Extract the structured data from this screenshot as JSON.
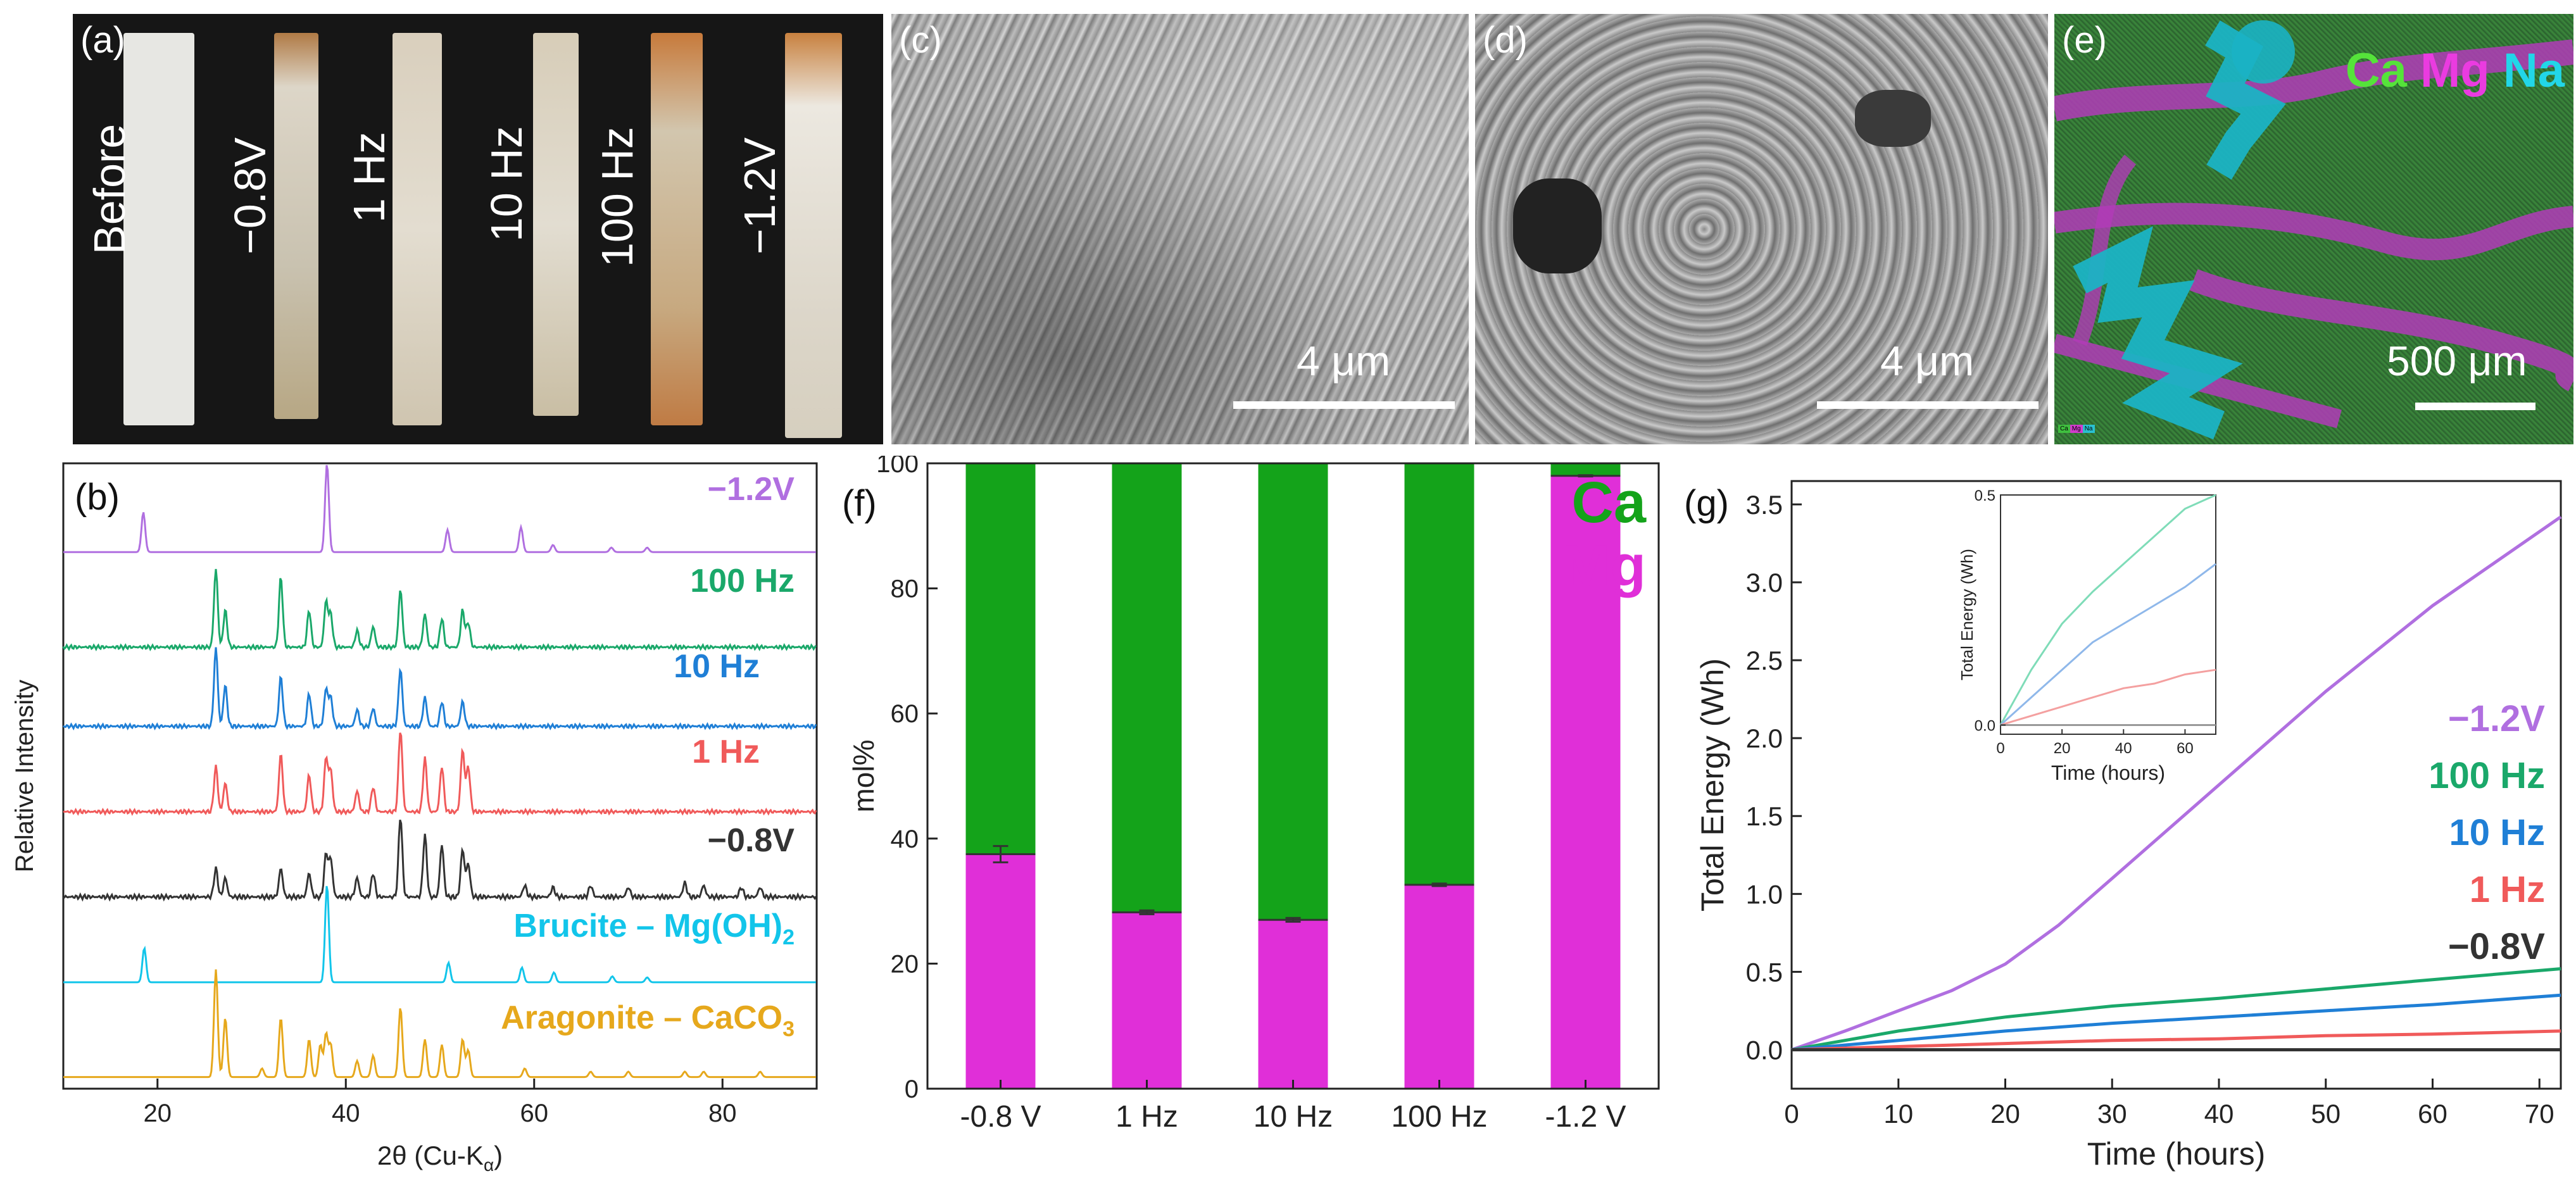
{
  "panel_a": {
    "label": "(a)",
    "strips": [
      "Before",
      "−0.8V",
      "1 Hz",
      "10 Hz",
      "100 Hz",
      "−1.2V"
    ]
  },
  "panel_c": {
    "label": "(c)",
    "scale": "4 μm"
  },
  "panel_d": {
    "label": "(d)",
    "scale": "4 μm"
  },
  "panel_e": {
    "label": "(e)",
    "legend": [
      "Ca",
      "Mg",
      "Na"
    ],
    "scale": "500 μm",
    "mini_legend": [
      "Ca",
      "Mg",
      "Na"
    ]
  },
  "panel_b": {
    "label": "(b)"
  },
  "panel_f": {
    "label": "(f)"
  },
  "panel_g": {
    "label": "(g)"
  },
  "colors": {
    "ca": "#14a31a",
    "mg": "#e02fd8",
    "na": "#18b8c9",
    "purple": "#b06fe0",
    "green": "#1aa86a",
    "blue": "#1f7fd6",
    "red": "#f05a5a",
    "dark": "#333333",
    "cyan": "#12c5ea",
    "gold": "#e6a81c"
  },
  "chart_data": [
    {
      "panel": "b",
      "type": "line",
      "xlabel": "2θ (Cu-K",
      "xlabel_sub": "α",
      "xlabel_end": ")",
      "ylabel": "Relative Intensity",
      "xlim": [
        10,
        90
      ],
      "xticks": [
        20,
        40,
        60,
        80
      ],
      "series": [
        {
          "name": "−1.2V",
          "color": "#b06fe0",
          "peaks": [
            [
              18.5,
              0.45
            ],
            [
              38.0,
              1.0
            ],
            [
              50.8,
              0.25
            ],
            [
              58.6,
              0.28
            ],
            [
              62.0,
              0.08
            ],
            [
              68.2,
              0.05
            ],
            [
              72.0,
              0.05
            ]
          ]
        },
        {
          "name": "100 Hz",
          "color": "#1aa86a",
          "peaks": [
            [
              26.2,
              0.95
            ],
            [
              27.2,
              0.45
            ],
            [
              33.1,
              0.85
            ],
            [
              36.1,
              0.45
            ],
            [
              37.9,
              0.55
            ],
            [
              38.4,
              0.4
            ],
            [
              41.2,
              0.2
            ],
            [
              42.9,
              0.25
            ],
            [
              45.8,
              0.7
            ],
            [
              48.4,
              0.4
            ],
            [
              50.2,
              0.35
            ],
            [
              52.4,
              0.45
            ],
            [
              53.0,
              0.3
            ]
          ]
        },
        {
          "name": "10 Hz",
          "color": "#1f7fd6",
          "peaks": [
            [
              26.2,
              0.95
            ],
            [
              27.2,
              0.5
            ],
            [
              33.1,
              0.6
            ],
            [
              36.1,
              0.4
            ],
            [
              37.9,
              0.45
            ],
            [
              38.4,
              0.35
            ],
            [
              41.2,
              0.2
            ],
            [
              42.9,
              0.22
            ],
            [
              45.8,
              0.7
            ],
            [
              48.4,
              0.35
            ],
            [
              50.2,
              0.3
            ],
            [
              52.4,
              0.3
            ]
          ]
        },
        {
          "name": "1 Hz",
          "color": "#f05a5a",
          "peaks": [
            [
              26.2,
              0.55
            ],
            [
              27.2,
              0.35
            ],
            [
              33.1,
              0.7
            ],
            [
              36.1,
              0.45
            ],
            [
              37.9,
              0.65
            ],
            [
              38.4,
              0.5
            ],
            [
              41.2,
              0.25
            ],
            [
              42.9,
              0.3
            ],
            [
              45.8,
              1.0
            ],
            [
              48.4,
              0.65
            ],
            [
              50.2,
              0.55
            ],
            [
              52.4,
              0.75
            ],
            [
              53.0,
              0.55
            ]
          ]
        },
        {
          "name": "−0.8V",
          "color": "#333333",
          "peaks": [
            [
              26.2,
              0.3
            ],
            [
              27.2,
              0.2
            ],
            [
              33.1,
              0.3
            ],
            [
              36.1,
              0.25
            ],
            [
              37.9,
              0.45
            ],
            [
              38.4,
              0.4
            ],
            [
              41.2,
              0.2
            ],
            [
              42.9,
              0.25
            ],
            [
              45.8,
              0.85
            ],
            [
              48.4,
              0.65
            ],
            [
              50.2,
              0.55
            ],
            [
              52.4,
              0.5
            ],
            [
              53.0,
              0.35
            ],
            [
              59.0,
              0.12
            ],
            [
              62.0,
              0.1
            ],
            [
              66.0,
              0.12
            ],
            [
              70.0,
              0.1
            ],
            [
              76.0,
              0.15
            ],
            [
              78.0,
              0.12
            ],
            [
              82.0,
              0.1
            ],
            [
              84.0,
              0.1
            ]
          ]
        },
        {
          "name": "Brucite – Mg(OH)",
          "name_sub": "2",
          "color": "#12c5ea",
          "peaks": [
            [
              18.6,
              0.35
            ],
            [
              38.0,
              1.0
            ],
            [
              50.9,
              0.2
            ],
            [
              58.7,
              0.15
            ],
            [
              62.1,
              0.1
            ],
            [
              68.3,
              0.06
            ],
            [
              72.0,
              0.05
            ]
          ]
        },
        {
          "name": "Aragonite – CaCO",
          "name_sub": "3",
          "color": "#e6a81c",
          "peaks": [
            [
              26.2,
              1.0
            ],
            [
              27.2,
              0.55
            ],
            [
              31.1,
              0.08
            ],
            [
              33.1,
              0.55
            ],
            [
              36.1,
              0.35
            ],
            [
              37.3,
              0.3
            ],
            [
              37.9,
              0.4
            ],
            [
              38.4,
              0.3
            ],
            [
              41.2,
              0.15
            ],
            [
              42.9,
              0.2
            ],
            [
              45.8,
              0.65
            ],
            [
              48.4,
              0.35
            ],
            [
              50.2,
              0.3
            ],
            [
              52.4,
              0.35
            ],
            [
              53.0,
              0.25
            ],
            [
              59.0,
              0.08
            ],
            [
              66.0,
              0.05
            ],
            [
              70.0,
              0.05
            ],
            [
              76.0,
              0.05
            ],
            [
              78.0,
              0.05
            ],
            [
              84.0,
              0.05
            ]
          ]
        }
      ]
    },
    {
      "panel": "f",
      "type": "bar",
      "ylabel": "mol%",
      "ylim": [
        0,
        100
      ],
      "yticks": [
        0,
        20,
        40,
        60,
        80,
        100
      ],
      "categories": [
        "-0.8 V",
        "1 Hz",
        "10 Hz",
        "100 Hz",
        "-1.2 V"
      ],
      "series": [
        {
          "name": "Mg",
          "color": "#e02fd8",
          "values": [
            37.5,
            28.2,
            27.0,
            32.6,
            98.0
          ]
        },
        {
          "name": "Ca",
          "color": "#14a31a",
          "values": [
            62.5,
            71.8,
            73.0,
            67.4,
            2.0
          ]
        }
      ],
      "error": [
        1.3,
        0.3,
        0.3,
        0.2,
        0.1
      ],
      "legend": [
        "Ca",
        "Mg"
      ]
    },
    {
      "panel": "g",
      "type": "line",
      "xlabel": "Time (hours)",
      "ylabel": "Total Energy (Wh)",
      "xlim": [
        0,
        72
      ],
      "ylim": [
        -0.25,
        3.65
      ],
      "xticks": [
        0,
        10,
        20,
        30,
        40,
        50,
        60,
        70
      ],
      "yticks": [
        0.0,
        0.5,
        1.0,
        1.5,
        2.0,
        2.5,
        3.0,
        3.5
      ],
      "series": [
        {
          "name": "−1.2V",
          "color": "#b06fe0",
          "x": [
            0,
            5,
            10,
            15,
            20,
            25,
            30,
            40,
            50,
            60,
            72
          ],
          "y": [
            0,
            0.12,
            0.25,
            0.38,
            0.55,
            0.8,
            1.1,
            1.7,
            2.3,
            2.85,
            3.42
          ]
        },
        {
          "name": "100 Hz",
          "color": "#1aa86a",
          "x": [
            0,
            10,
            20,
            30,
            40,
            50,
            60,
            72
          ],
          "y": [
            0,
            0.12,
            0.21,
            0.28,
            0.33,
            0.39,
            0.45,
            0.52
          ]
        },
        {
          "name": "10 Hz",
          "color": "#1f7fd6",
          "x": [
            0,
            10,
            20,
            30,
            40,
            50,
            60,
            72
          ],
          "y": [
            0,
            0.06,
            0.12,
            0.17,
            0.21,
            0.25,
            0.29,
            0.35
          ]
        },
        {
          "name": "1 Hz",
          "color": "#f05a5a",
          "x": [
            0,
            10,
            20,
            30,
            40,
            50,
            60,
            72
          ],
          "y": [
            0,
            0.02,
            0.04,
            0.06,
            0.07,
            0.09,
            0.1,
            0.12
          ]
        },
        {
          "name": "−0.8V",
          "color": "#333333",
          "x": [
            0,
            72
          ],
          "y": [
            0,
            0
          ]
        }
      ],
      "inset": {
        "xlabel": "Time (hours)",
        "ylabel": "Total Energy (Wh)",
        "xlim": [
          0,
          70
        ],
        "ylim": [
          -0.02,
          0.5
        ],
        "xticks": [
          0,
          20,
          40,
          60
        ],
        "yticks": [
          0.0,
          0.5
        ],
        "series": [
          {
            "color": "#7fdcb8",
            "x": [
              0,
              10,
              20,
              30,
              40,
              50,
              60,
              70
            ],
            "y": [
              0,
              0.12,
              0.22,
              0.29,
              0.35,
              0.41,
              0.47,
              0.52
            ]
          },
          {
            "color": "#8fb8ea",
            "x": [
              0,
              10,
              20,
              30,
              40,
              50,
              60,
              70
            ],
            "y": [
              0,
              0.06,
              0.12,
              0.18,
              0.22,
              0.26,
              0.3,
              0.35
            ]
          },
          {
            "color": "#f4a0a0",
            "x": [
              0,
              10,
              20,
              30,
              40,
              50,
              60,
              70
            ],
            "y": [
              0,
              0.02,
              0.04,
              0.06,
              0.08,
              0.09,
              0.11,
              0.12
            ]
          },
          {
            "color": "#999999",
            "x": [
              0,
              70
            ],
            "y": [
              0,
              0
            ]
          }
        ]
      }
    }
  ]
}
